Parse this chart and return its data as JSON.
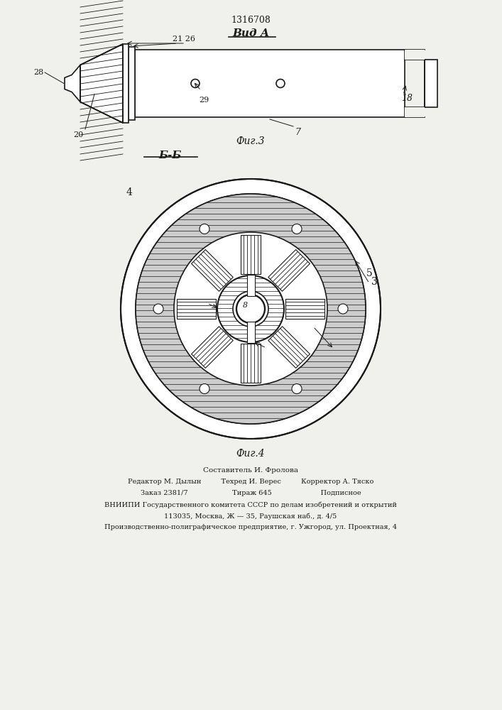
{
  "title": "1316708",
  "view_label_top": "Вид А",
  "section_label": "Б-Б",
  "fig3_label": "Фиг.3",
  "fig4_label": "Фиг.4",
  "footer_lines": [
    "Составитель И. Фролова",
    "Редактор М. Дылын         Техред И. Верес         Корректор А. Тяско",
    "Заказ 2381/7                    Тираж 645                      Подписное",
    "ВНИИПИ Государственного комитета СССР по делам изобретений и открытий",
    "113035, Москва, Ж — 35, Раушская наб., д. 4/5",
    "Производственно-полиграфическое предприятие, г. Ужгород, ул. Проектная, 4"
  ],
  "bg_color": "#f0f0ec",
  "line_color": "#1a1a1a"
}
